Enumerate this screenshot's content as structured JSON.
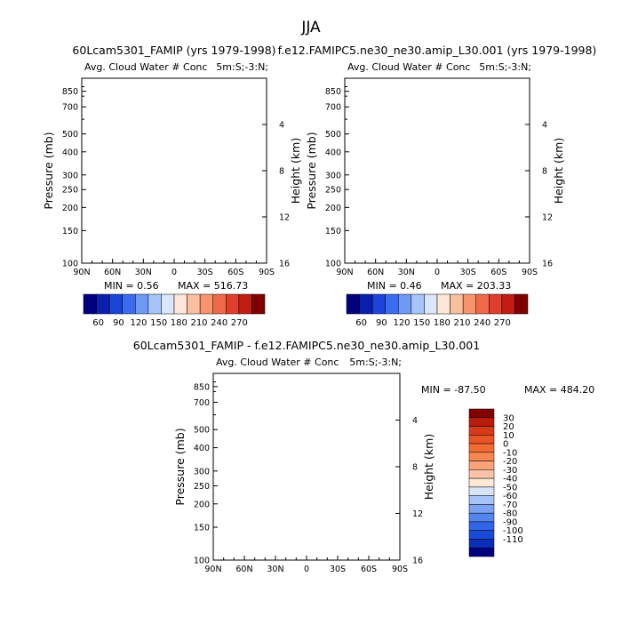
{
  "page_title": "JJA",
  "panels": [
    {
      "title": "60Lcam5301_FAMIP (yrs 1979-1998)",
      "subtitle_left": "Avg. Cloud Water # Conc",
      "subtitle_right": "5m:S;-3:N;",
      "ylabel": "Pressure (mb)",
      "ylabel_right": "Height (km)",
      "min_label": "MIN =    0.56",
      "max_label": "MAX = 516.73"
    },
    {
      "title": "f.e12.FAMIPC5.ne30_ne30.amip_L30.001 (yrs 1979-1998)",
      "subtitle_left": "Avg. Cloud Water # Conc",
      "subtitle_right": "5m:S;-3:N;",
      "ylabel": "Pressure (mb)",
      "ylabel_right": "Height (km)",
      "min_label": "MIN =    0.46",
      "max_label": "MAX = 203.33"
    },
    {
      "title": "60Lcam5301_FAMIP - f.e12.FAMIPC5.ne30_ne30.amip_L30.001",
      "subtitle_left": "Avg. Cloud Water # Conc",
      "subtitle_right": "5m:S;-3:N;",
      "ylabel": "Pressure (mb)",
      "ylabel_right": "Height (km)",
      "min_label": "MIN = -87.50",
      "max_label": "MAX = 484.20"
    }
  ],
  "chart_data": [
    {
      "type": "heatmap",
      "x_ticks": [
        "90N",
        "60N",
        "30N",
        "0",
        "30S",
        "60S",
        "90S"
      ],
      "y_ticks": [
        100,
        150,
        200,
        250,
        300,
        400,
        500,
        700,
        850
      ],
      "y2_ticks": [
        4,
        8,
        12,
        16
      ],
      "yscale": "log",
      "ylim": [
        1000,
        100
      ],
      "xlim": [
        "90N",
        "90S"
      ],
      "colorbar": [
        60,
        90,
        120,
        150,
        180,
        210,
        240,
        270
      ],
      "colors": [
        "#00007f",
        "#0a1fb0",
        "#1a45d8",
        "#3a6cf0",
        "#6e98f5",
        "#a6c4f8",
        "#d9e6fb",
        "#fde6d6",
        "#fbbfa0",
        "#f6946e",
        "#ee6a4a",
        "#df3f2c",
        "#c21c14",
        "#800000"
      ]
    },
    {
      "type": "heatmap",
      "x_ticks": [
        "90N",
        "60N",
        "30N",
        "0",
        "30S",
        "60S",
        "90S"
      ],
      "y_ticks": [
        100,
        150,
        200,
        250,
        300,
        400,
        500,
        700,
        850
      ],
      "y2_ticks": [
        4,
        8,
        12,
        16
      ],
      "yscale": "log",
      "ylim": [
        1000,
        100
      ],
      "xlim": [
        "90N",
        "90S"
      ],
      "colorbar": [
        60,
        90,
        120,
        150,
        180,
        210,
        240,
        270
      ],
      "colors": [
        "#00007f",
        "#0a1fb0",
        "#1a45d8",
        "#3a6cf0",
        "#6e98f5",
        "#a6c4f8",
        "#d9e6fb",
        "#fde6d6",
        "#fbbfa0",
        "#f6946e",
        "#ee6a4a",
        "#df3f2c",
        "#c21c14",
        "#800000"
      ]
    },
    {
      "type": "heatmap",
      "x_ticks": [
        "90N",
        "60N",
        "30N",
        "0",
        "30S",
        "60S",
        "90S"
      ],
      "y_ticks": [
        100,
        150,
        200,
        250,
        300,
        400,
        500,
        700,
        850
      ],
      "y2_ticks": [
        4,
        8,
        12,
        16
      ],
      "yscale": "log",
      "ylim": [
        1000,
        100
      ],
      "xlim": [
        "90N",
        "90S"
      ],
      "colorbar": [
        30,
        20,
        10,
        0,
        -10,
        -20,
        -30,
        -40,
        -50,
        -60,
        -70,
        -80,
        -90,
        -100,
        -110
      ],
      "colors": [
        "#800000",
        "#b81c0c",
        "#d63a18",
        "#e85424",
        "#f46c34",
        "#f88650",
        "#fba27a",
        "#fcc3a8",
        "#fde8d6",
        "#d6e4fb",
        "#a8c4f6",
        "#7ba2f2",
        "#5484ee",
        "#3166e8",
        "#1a4bd8",
        "#0a2eb8",
        "#00007f"
      ]
    }
  ]
}
